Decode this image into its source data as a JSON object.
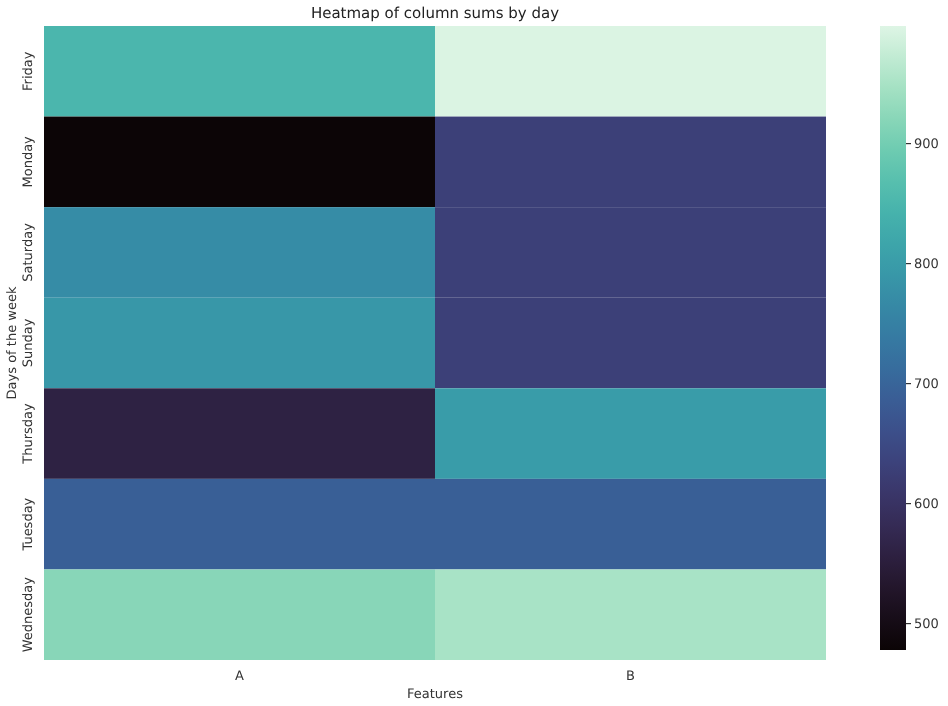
{
  "chart_data": {
    "type": "heatmap",
    "title": "Heatmap of column sums by day",
    "xlabel": "Features",
    "ylabel": "Days of the week",
    "categories": [
      "A",
      "B"
    ],
    "y_categories": [
      "Friday",
      "Monday",
      "Saturday",
      "Sunday",
      "Thursday",
      "Tuesday",
      "Wednesday"
    ],
    "cells": [
      [
        850,
        995
      ],
      [
        480,
        630
      ],
      [
        770,
        630
      ],
      [
        790,
        630
      ],
      [
        560,
        800
      ],
      [
        690,
        690
      ],
      [
        920,
        950
      ]
    ],
    "clim": [
      478,
      998
    ],
    "cticks": [
      500,
      600,
      700,
      800,
      900
    ]
  }
}
